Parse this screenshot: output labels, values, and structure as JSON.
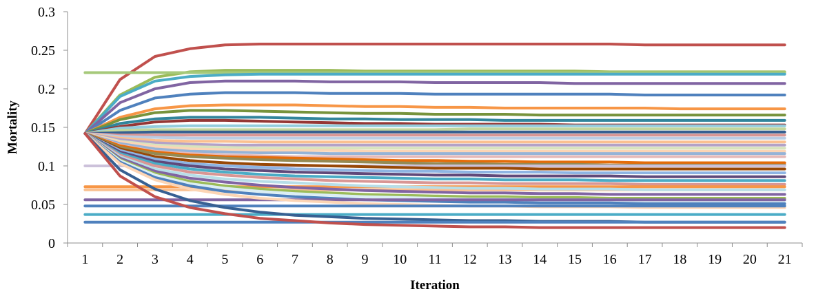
{
  "chart_data": {
    "type": "line",
    "title": "",
    "xlabel": "Iteration",
    "ylabel": "Mortality",
    "x": [
      1,
      2,
      3,
      4,
      5,
      6,
      7,
      8,
      9,
      10,
      11,
      12,
      13,
      14,
      15,
      16,
      17,
      18,
      19,
      20,
      21
    ],
    "xlim": [
      0.5,
      21.5
    ],
    "ylim": [
      0,
      0.3
    ],
    "yticks": [
      "0",
      "0.05",
      "0.1",
      "0.15",
      "0.2",
      "0.25",
      "0.3"
    ],
    "grid": false,
    "legend": "none",
    "series": [
      {
        "color": "#C0504D",
        "values": [
          0.142,
          0.212,
          0.242,
          0.252,
          0.257,
          0.258,
          0.258,
          0.258,
          0.258,
          0.258,
          0.258,
          0.258,
          0.258,
          0.258,
          0.258,
          0.258,
          0.257,
          0.257,
          0.257,
          0.257,
          0.257
        ]
      },
      {
        "color": "#9BBB59",
        "values": [
          0.142,
          0.192,
          0.215,
          0.222,
          0.224,
          0.224,
          0.224,
          0.224,
          0.223,
          0.223,
          0.223,
          0.223,
          0.223,
          0.223,
          0.223,
          0.222,
          0.222,
          0.222,
          0.222,
          0.222,
          0.222
        ]
      },
      {
        "color": "#A6C97A",
        "values": [
          0.221,
          0.221,
          0.221,
          0.221,
          0.221,
          0.221,
          0.221,
          0.221,
          0.221,
          0.221,
          0.221,
          0.221,
          0.221,
          0.221,
          0.221,
          0.221,
          0.221,
          0.221,
          0.221,
          0.221,
          0.221
        ]
      },
      {
        "color": "#4BACC6",
        "values": [
          0.142,
          0.19,
          0.21,
          0.216,
          0.218,
          0.219,
          0.219,
          0.219,
          0.219,
          0.219,
          0.219,
          0.219,
          0.219,
          0.219,
          0.219,
          0.219,
          0.219,
          0.219,
          0.219,
          0.219,
          0.219
        ]
      },
      {
        "color": "#8064A2",
        "values": [
          0.142,
          0.182,
          0.2,
          0.208,
          0.21,
          0.21,
          0.21,
          0.209,
          0.209,
          0.209,
          0.208,
          0.208,
          0.208,
          0.208,
          0.207,
          0.207,
          0.207,
          0.207,
          0.207,
          0.207,
          0.207
        ]
      },
      {
        "color": "#4F81BD",
        "values": [
          0.142,
          0.172,
          0.188,
          0.193,
          0.195,
          0.195,
          0.195,
          0.194,
          0.194,
          0.194,
          0.193,
          0.193,
          0.193,
          0.193,
          0.193,
          0.193,
          0.192,
          0.192,
          0.192,
          0.192,
          0.192
        ]
      },
      {
        "color": "#F79646",
        "values": [
          0.142,
          0.163,
          0.174,
          0.178,
          0.179,
          0.179,
          0.179,
          0.178,
          0.177,
          0.177,
          0.176,
          0.176,
          0.175,
          0.175,
          0.175,
          0.175,
          0.175,
          0.174,
          0.174,
          0.174,
          0.174
        ]
      },
      {
        "color": "#77933C",
        "values": [
          0.142,
          0.16,
          0.169,
          0.172,
          0.172,
          0.171,
          0.17,
          0.169,
          0.168,
          0.168,
          0.167,
          0.167,
          0.167,
          0.166,
          0.166,
          0.166,
          0.166,
          0.166,
          0.166,
          0.166,
          0.166
        ]
      },
      {
        "color": "#31859C",
        "values": [
          0.142,
          0.155,
          0.161,
          0.163,
          0.163,
          0.163,
          0.162,
          0.161,
          0.161,
          0.16,
          0.16,
          0.16,
          0.159,
          0.159,
          0.159,
          0.159,
          0.159,
          0.159,
          0.159,
          0.159,
          0.159
        ]
      },
      {
        "color": "#953735",
        "values": [
          0.142,
          0.151,
          0.157,
          0.159,
          0.159,
          0.158,
          0.157,
          0.156,
          0.155,
          0.155,
          0.154,
          0.154,
          0.154,
          0.154,
          0.153,
          0.153,
          0.153,
          0.153,
          0.153,
          0.153,
          0.153
        ]
      },
      {
        "color": "#93CDDD",
        "values": [
          0.142,
          0.149,
          0.151,
          0.152,
          0.152,
          0.152,
          0.152,
          0.152,
          0.152,
          0.152,
          0.152,
          0.152,
          0.152,
          0.152,
          0.152,
          0.152,
          0.152,
          0.152,
          0.152,
          0.152,
          0.152
        ]
      },
      {
        "color": "#C3D69B",
        "values": [
          0.142,
          0.146,
          0.147,
          0.147,
          0.147,
          0.147,
          0.147,
          0.147,
          0.147,
          0.147,
          0.147,
          0.148,
          0.148,
          0.148,
          0.148,
          0.148,
          0.148,
          0.148,
          0.148,
          0.148,
          0.148
        ]
      },
      {
        "color": "#376092",
        "values": [
          0.142,
          0.143,
          0.144,
          0.144,
          0.144,
          0.144,
          0.144,
          0.144,
          0.144,
          0.144,
          0.144,
          0.144,
          0.144,
          0.144,
          0.144,
          0.144,
          0.144,
          0.144,
          0.144,
          0.144,
          0.144
        ]
      },
      {
        "color": "#D99694",
        "values": [
          0.142,
          0.14,
          0.14,
          0.14,
          0.14,
          0.14,
          0.14,
          0.14,
          0.14,
          0.14,
          0.14,
          0.14,
          0.14,
          0.14,
          0.14,
          0.14,
          0.14,
          0.14,
          0.14,
          0.14,
          0.14
        ]
      },
      {
        "color": "#B9CDE5",
        "values": [
          0.142,
          0.138,
          0.137,
          0.136,
          0.136,
          0.136,
          0.136,
          0.136,
          0.136,
          0.136,
          0.136,
          0.136,
          0.136,
          0.136,
          0.136,
          0.136,
          0.136,
          0.136,
          0.136,
          0.136,
          0.136
        ]
      },
      {
        "color": "#FAC090",
        "values": [
          0.142,
          0.136,
          0.133,
          0.132,
          0.132,
          0.131,
          0.131,
          0.131,
          0.131,
          0.131,
          0.131,
          0.131,
          0.131,
          0.131,
          0.131,
          0.131,
          0.131,
          0.131,
          0.131,
          0.131,
          0.131
        ]
      },
      {
        "color": "#B3A2C7",
        "values": [
          0.142,
          0.134,
          0.13,
          0.128,
          0.127,
          0.127,
          0.127,
          0.127,
          0.127,
          0.127,
          0.127,
          0.127,
          0.127,
          0.127,
          0.127,
          0.127,
          0.127,
          0.127,
          0.127,
          0.127,
          0.127
        ]
      },
      {
        "color": "#D7E4BD",
        "values": [
          0.142,
          0.132,
          0.127,
          0.125,
          0.124,
          0.123,
          0.123,
          0.123,
          0.123,
          0.123,
          0.123,
          0.123,
          0.123,
          0.123,
          0.123,
          0.123,
          0.123,
          0.123,
          0.123,
          0.123,
          0.123
        ]
      },
      {
        "color": "#FCD5B5",
        "values": [
          0.142,
          0.131,
          0.125,
          0.122,
          0.121,
          0.12,
          0.12,
          0.12,
          0.119,
          0.119,
          0.119,
          0.119,
          0.119,
          0.119,
          0.119,
          0.119,
          0.119,
          0.119,
          0.119,
          0.119,
          0.119
        ]
      },
      {
        "color": "#95B3D7",
        "values": [
          0.142,
          0.129,
          0.122,
          0.119,
          0.118,
          0.117,
          0.117,
          0.116,
          0.116,
          0.116,
          0.116,
          0.116,
          0.116,
          0.116,
          0.116,
          0.116,
          0.116,
          0.116,
          0.116,
          0.116,
          0.116
        ]
      },
      {
        "color": "#E6B9B8",
        "values": [
          0.142,
          0.127,
          0.119,
          0.116,
          0.114,
          0.113,
          0.112,
          0.112,
          0.112,
          0.112,
          0.112,
          0.112,
          0.112,
          0.112,
          0.112,
          0.112,
          0.112,
          0.112,
          0.112,
          0.112,
          0.112
        ]
      },
      {
        "color": "#E46C0A",
        "values": [
          0.142,
          0.126,
          0.118,
          0.114,
          0.112,
          0.111,
          0.11,
          0.109,
          0.108,
          0.107,
          0.107,
          0.106,
          0.106,
          0.105,
          0.105,
          0.105,
          0.104,
          0.104,
          0.104,
          0.104,
          0.104
        ]
      },
      {
        "color": "#948A54",
        "values": [
          0.142,
          0.124,
          0.116,
          0.112,
          0.11,
          0.108,
          0.107,
          0.106,
          0.105,
          0.104,
          0.103,
          0.103,
          0.102,
          0.102,
          0.102,
          0.101,
          0.101,
          0.101,
          0.101,
          0.101,
          0.101
        ]
      },
      {
        "color": "#CCC1DA",
        "values": [
          0.1,
          0.1,
          0.1,
          0.1,
          0.1,
          0.1,
          0.1,
          0.1,
          0.1,
          0.1,
          0.1,
          0.1,
          0.1,
          0.1,
          0.1,
          0.1,
          0.1,
          0.1,
          0.1,
          0.1,
          0.1
        ]
      },
      {
        "color": "#984807",
        "values": [
          0.142,
          0.122,
          0.112,
          0.107,
          0.104,
          0.102,
          0.101,
          0.1,
          0.099,
          0.098,
          0.097,
          0.097,
          0.097,
          0.096,
          0.096,
          0.096,
          0.096,
          0.096,
          0.096,
          0.096,
          0.096
        ]
      },
      {
        "color": "#8EB4E3",
        "values": [
          0.142,
          0.12,
          0.109,
          0.103,
          0.1,
          0.098,
          0.096,
          0.095,
          0.094,
          0.093,
          0.093,
          0.092,
          0.092,
          0.092,
          0.091,
          0.091,
          0.091,
          0.091,
          0.091,
          0.091,
          0.091
        ]
      },
      {
        "color": "#60497A",
        "values": [
          0.142,
          0.118,
          0.106,
          0.1,
          0.096,
          0.094,
          0.092,
          0.091,
          0.09,
          0.089,
          0.088,
          0.088,
          0.087,
          0.087,
          0.087,
          0.087,
          0.086,
          0.086,
          0.086,
          0.086,
          0.086
        ]
      },
      {
        "color": "#4BACC6",
        "values": [
          0.142,
          0.116,
          0.103,
          0.096,
          0.092,
          0.089,
          0.087,
          0.086,
          0.085,
          0.084,
          0.083,
          0.083,
          0.082,
          0.082,
          0.082,
          0.081,
          0.081,
          0.081,
          0.081,
          0.081,
          0.081
        ]
      },
      {
        "color": "#D99694",
        "values": [
          0.142,
          0.114,
          0.1,
          0.092,
          0.088,
          0.085,
          0.083,
          0.081,
          0.08,
          0.079,
          0.078,
          0.078,
          0.077,
          0.077,
          0.077,
          0.077,
          0.076,
          0.076,
          0.076,
          0.076,
          0.076
        ]
      },
      {
        "color": "#F79646",
        "values": [
          0.073,
          0.073,
          0.073,
          0.073,
          0.073,
          0.073,
          0.073,
          0.073,
          0.073,
          0.073,
          0.073,
          0.073,
          0.073,
          0.073,
          0.073,
          0.073,
          0.073,
          0.073,
          0.073,
          0.073,
          0.073
        ]
      },
      {
        "color": "#FAC090",
        "values": [
          0.069,
          0.069,
          0.069,
          0.069,
          0.069,
          0.069,
          0.069,
          0.069,
          0.069,
          0.069,
          0.069,
          0.069,
          0.069,
          0.069,
          0.069,
          0.069,
          0.069,
          0.069,
          0.069,
          0.069,
          0.069
        ]
      },
      {
        "color": "#B7DEE8",
        "values": [
          0.142,
          0.112,
          0.096,
          0.088,
          0.083,
          0.08,
          0.078,
          0.076,
          0.074,
          0.073,
          0.072,
          0.071,
          0.071,
          0.07,
          0.07,
          0.07,
          0.069,
          0.069,
          0.069,
          0.069,
          0.069
        ]
      },
      {
        "color": "#8064A2",
        "values": [
          0.142,
          0.11,
          0.093,
          0.084,
          0.079,
          0.075,
          0.072,
          0.07,
          0.068,
          0.067,
          0.066,
          0.065,
          0.065,
          0.064,
          0.064,
          0.063,
          0.063,
          0.063,
          0.063,
          0.063,
          0.063
        ]
      },
      {
        "color": "#9BBB59",
        "values": [
          0.142,
          0.108,
          0.09,
          0.08,
          0.074,
          0.07,
          0.067,
          0.065,
          0.063,
          0.062,
          0.061,
          0.06,
          0.06,
          0.059,
          0.059,
          0.058,
          0.058,
          0.058,
          0.058,
          0.058,
          0.058
        ]
      },
      {
        "color": "#DBEEF4",
        "values": [
          0.142,
          0.107,
          0.088,
          0.077,
          0.071,
          0.067,
          0.064,
          0.062,
          0.06,
          0.059,
          0.058,
          0.057,
          0.057,
          0.056,
          0.056,
          0.056,
          0.055,
          0.055,
          0.055,
          0.055,
          0.055
        ]
      },
      {
        "color": "#4F81BD",
        "values": [
          0.142,
          0.105,
          0.085,
          0.074,
          0.067,
          0.063,
          0.06,
          0.058,
          0.056,
          0.055,
          0.054,
          0.053,
          0.053,
          0.052,
          0.052,
          0.052,
          0.051,
          0.051,
          0.051,
          0.051,
          0.051
        ]
      },
      {
        "color": "#8064A2",
        "values": [
          0.056,
          0.056,
          0.056,
          0.056,
          0.056,
          0.056,
          0.056,
          0.056,
          0.056,
          0.056,
          0.056,
          0.056,
          0.056,
          0.056,
          0.056,
          0.056,
          0.056,
          0.056,
          0.056,
          0.056,
          0.056
        ]
      },
      {
        "color": "#FCD5B5",
        "values": [
          0.142,
          0.103,
          0.082,
          0.07,
          0.063,
          0.058,
          0.055,
          0.053,
          0.051,
          0.05,
          0.049,
          0.048,
          0.048,
          0.047,
          0.047,
          0.047,
          0.046,
          0.046,
          0.046,
          0.046,
          0.046
        ]
      },
      {
        "color": "#4F81BD",
        "values": [
          0.048,
          0.048,
          0.048,
          0.048,
          0.048,
          0.048,
          0.048,
          0.048,
          0.048,
          0.048,
          0.048,
          0.048,
          0.048,
          0.048,
          0.048,
          0.048,
          0.048,
          0.048,
          0.048,
          0.048,
          0.048
        ]
      },
      {
        "color": "#4BACC6",
        "values": [
          0.037,
          0.037,
          0.037,
          0.037,
          0.037,
          0.037,
          0.037,
          0.037,
          0.037,
          0.037,
          0.037,
          0.037,
          0.037,
          0.037,
          0.037,
          0.037,
          0.037,
          0.037,
          0.037,
          0.037,
          0.037
        ]
      },
      {
        "color": "#376092",
        "values": [
          0.142,
          0.095,
          0.07,
          0.055,
          0.046,
          0.04,
          0.036,
          0.034,
          0.032,
          0.031,
          0.03,
          0.029,
          0.029,
          0.028,
          0.028,
          0.028,
          0.027,
          0.027,
          0.027,
          0.027,
          0.027
        ]
      },
      {
        "color": "#4F81BD",
        "values": [
          0.027,
          0.027,
          0.027,
          0.027,
          0.027,
          0.027,
          0.027,
          0.027,
          0.027,
          0.027,
          0.027,
          0.027,
          0.027,
          0.027,
          0.027,
          0.027,
          0.027,
          0.027,
          0.027,
          0.027,
          0.027
        ]
      },
      {
        "color": "#C0504D",
        "values": [
          0.142,
          0.087,
          0.06,
          0.046,
          0.038,
          0.032,
          0.029,
          0.026,
          0.024,
          0.023,
          0.022,
          0.021,
          0.021,
          0.02,
          0.02,
          0.02,
          0.02,
          0.02,
          0.02,
          0.02,
          0.02
        ]
      }
    ]
  }
}
